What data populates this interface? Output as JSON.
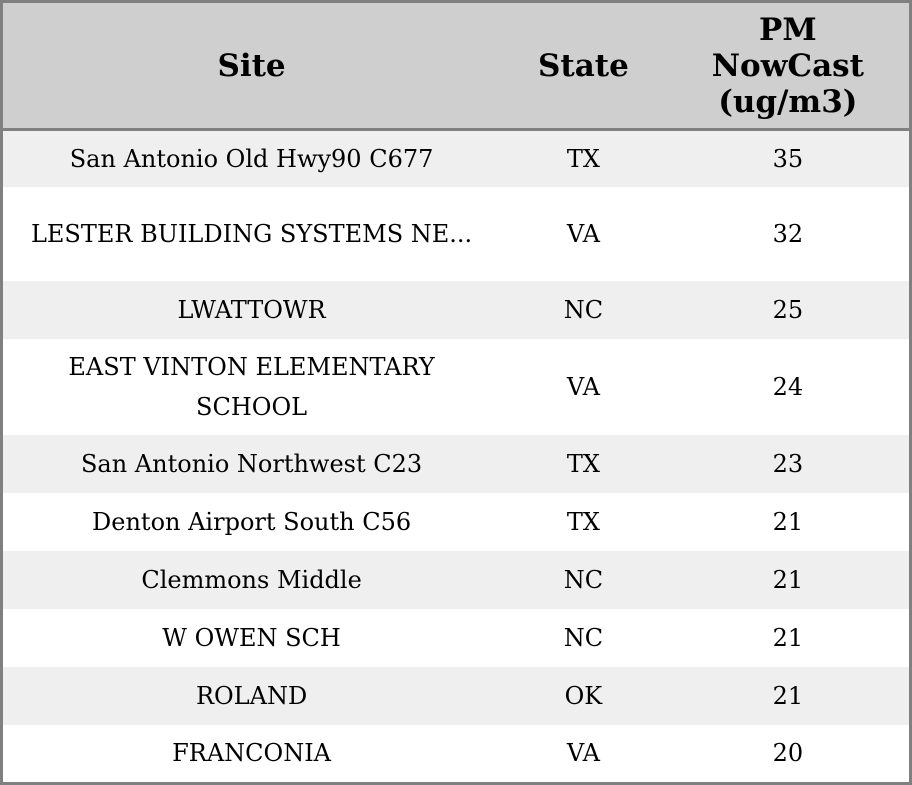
{
  "columns": [
    "Site",
    "State",
    "PM\nNowCast\n(ug/m3)"
  ],
  "column_lines": {
    "pm": [
      "PM",
      "NowCast",
      "(ug/m3)"
    ]
  },
  "rows": [
    {
      "site": "San Antonio Old Hwy90 C677",
      "state": "TX",
      "pm": "35"
    },
    {
      "site": "LESTER BUILDING SYSTEMS NE...",
      "state": "VA",
      "pm": "32"
    },
    {
      "site": "LWATTOWR",
      "state": "NC",
      "pm": "25"
    },
    {
      "site": "EAST VINTON ELEMENTARY SCHOOL",
      "state": "VA",
      "pm": "24"
    },
    {
      "site": "San Antonio Northwest C23",
      "state": "TX",
      "pm": "23"
    },
    {
      "site": "Denton Airport South C56",
      "state": "TX",
      "pm": "21"
    },
    {
      "site": "Clemmons Middle",
      "state": "NC",
      "pm": "21"
    },
    {
      "site": "W OWEN SCH",
      "state": "NC",
      "pm": "21"
    },
    {
      "site": "ROLAND",
      "state": "OK",
      "pm": "21"
    },
    {
      "site": "FRANCONIA",
      "state": "VA",
      "pm": "20"
    }
  ],
  "colors": {
    "header_bg": "#cfcfcf",
    "stripe_bg": "#efefef",
    "border": "#808080"
  }
}
